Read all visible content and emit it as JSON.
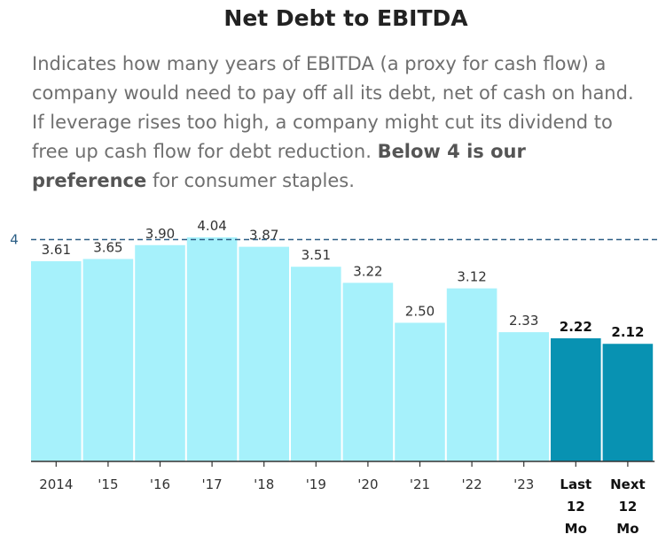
{
  "chart_data": {
    "type": "bar",
    "title": "Net Debt to EBITDA",
    "subtitle": {
      "text_before": "Indicates how many years of EBITDA (a proxy for cash flow) a company would need to pay off all its debt, net of cash on hand. If leverage rises too high, a company might cut its dividend to free up cash flow for debt reduction. ",
      "bold": "Below 4 is our preference",
      "text_after": " for consumer staples."
    },
    "categories": [
      "2014",
      "'15",
      "'16",
      "'17",
      "'18",
      "'19",
      "'20",
      "'21",
      "'22",
      "'23",
      "Last\n12\nMo",
      "Next\n12\nMo"
    ],
    "values": [
      3.61,
      3.65,
      3.9,
      4.04,
      3.87,
      3.51,
      3.22,
      2.5,
      3.12,
      2.33,
      2.22,
      2.12
    ],
    "value_labels": [
      "3.61",
      "3.65",
      "3.90",
      "4.04",
      "3.87",
      "3.51",
      "3.22",
      "2.50",
      "3.12",
      "2.33",
      "2.22",
      "2.12"
    ],
    "highlighted": [
      false,
      false,
      false,
      false,
      false,
      false,
      false,
      false,
      false,
      false,
      true,
      true
    ],
    "reference_line": {
      "value": 4,
      "label": "4",
      "style": "dashed"
    },
    "xlabel": "",
    "ylabel": "",
    "ylim": [
      0,
      4.04
    ],
    "grid": false,
    "legend": "none",
    "colors": {
      "bar": "#a6f1fb",
      "bar_highlight": "#0892b2",
      "reference_line": "#2c5f86",
      "axis": "#333333",
      "text": "#333333"
    }
  }
}
